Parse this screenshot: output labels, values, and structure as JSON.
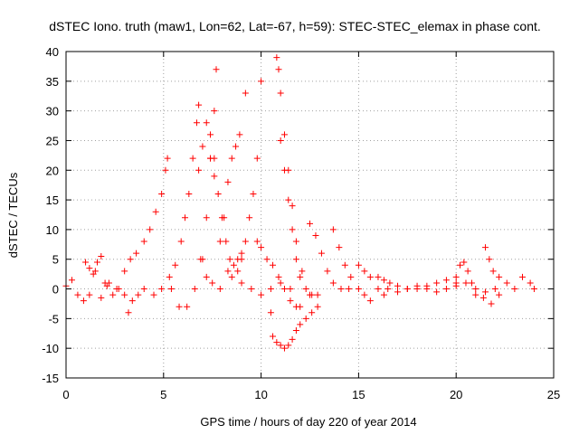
{
  "chart_data": {
    "type": "scatter",
    "title": "dSTEC Iono. truth (maw1, Lon=62, Lat=-67, h=59): STEC-STEC_elemax in phase cont.",
    "xlabel": "GPS time / hours of day 220 of year 2014",
    "ylabel": "dSTEC  / TECUs",
    "xlim": [
      0,
      25
    ],
    "ylim": [
      -15,
      40
    ],
    "xticks": [
      0,
      5,
      10,
      15,
      20,
      25
    ],
    "yticks": [
      -15,
      -10,
      -5,
      0,
      5,
      10,
      15,
      20,
      25,
      30,
      35,
      40
    ],
    "grid": true,
    "legend": "none",
    "marker": "plus",
    "color": "#ff0000",
    "series": [
      {
        "x": [
          0.0,
          0.3,
          0.6,
          0.9,
          1.2,
          1.5,
          1.8,
          2.1,
          2.4,
          2.7
        ],
        "y": [
          0.5,
          1.5,
          -1.0,
          -2.0,
          -1.0,
          3.0,
          -1.5,
          0.5,
          -1.0,
          0.0
        ]
      },
      {
        "x": [
          1.0,
          1.2,
          1.4,
          1.6,
          1.8,
          2.0
        ],
        "y": [
          4.5,
          3.5,
          2.5,
          4.5,
          5.5,
          1.0
        ]
      },
      {
        "x": [
          2.2,
          2.6,
          3.0,
          3.3,
          3.6,
          4.0,
          4.3,
          4.6,
          4.9,
          5.1,
          5.2
        ],
        "y": [
          1.0,
          0.0,
          3.0,
          5.0,
          6.0,
          8.0,
          10.0,
          13.0,
          16.0,
          20.0,
          22.0
        ]
      },
      {
        "x": [
          3.0,
          3.2,
          3.4,
          3.7,
          4.0
        ],
        "y": [
          -1.0,
          -4.0,
          -2.0,
          -1.0,
          0.0
        ]
      },
      {
        "x": [
          4.5,
          4.9,
          5.3,
          5.6,
          5.9,
          6.1,
          6.3,
          6.5,
          6.7,
          6.8
        ],
        "y": [
          -1.0,
          0.0,
          2.0,
          4.0,
          8.0,
          12.0,
          16.0,
          22.0,
          28.0,
          31.0
        ]
      },
      {
        "x": [
          5.4,
          5.8,
          6.2,
          6.6,
          7.0,
          7.2,
          7.4,
          7.6,
          7.7
        ],
        "y": [
          0.0,
          -3.0,
          -3.0,
          0.0,
          5.0,
          12.0,
          22.0,
          30.0,
          37.0
        ]
      },
      {
        "x": [
          6.9,
          7.2,
          7.5,
          7.9,
          8.3,
          8.6,
          8.8,
          9.0
        ],
        "y": [
          5.0,
          2.0,
          1.0,
          0.0,
          3.0,
          4.0,
          5.0,
          6.0
        ]
      },
      {
        "x": [
          7.4,
          7.6,
          7.8,
          8.0,
          8.2,
          8.4
        ],
        "y": [
          22.0,
          19.0,
          16.0,
          12.0,
          8.0,
          5.0
        ]
      },
      {
        "x": [
          6.8,
          7.0,
          7.2,
          7.4,
          7.6
        ],
        "y": [
          20.0,
          24.0,
          28.0,
          26.0,
          22.0
        ]
      },
      {
        "x": [
          7.9,
          8.1,
          8.3,
          8.5,
          8.7,
          8.9,
          9.2
        ],
        "y": [
          8.0,
          12.0,
          18.0,
          22.0,
          24.0,
          26.0,
          33.0
        ]
      },
      {
        "x": [
          8.8,
          9.0,
          9.2,
          9.4,
          9.6,
          9.8,
          10.0
        ],
        "y": [
          3.0,
          5.0,
          8.0,
          12.0,
          16.0,
          22.0,
          35.0
        ]
      },
      {
        "x": [
          9.8,
          10.0,
          10.3,
          10.6,
          10.9,
          11.2,
          11.5,
          11.8,
          12.0
        ],
        "y": [
          8.0,
          7.0,
          5.0,
          4.0,
          2.0,
          0.0,
          -2.0,
          -3.0,
          -3.0
        ]
      },
      {
        "x": [
          10.5,
          10.6,
          10.8,
          11.0,
          11.2,
          11.4,
          11.6,
          11.8,
          12.0,
          12.3,
          12.6,
          12.9
        ],
        "y": [
          -4.0,
          -8.0,
          -9.0,
          -9.5,
          -10.0,
          -9.5,
          -8.5,
          -7.0,
          -6.0,
          -5.0,
          -4.0,
          -3.0
        ]
      },
      {
        "x": [
          10.8,
          10.9,
          11.0,
          11.2,
          11.4,
          11.6,
          11.8,
          12.1,
          12.5
        ],
        "y": [
          39.0,
          37.0,
          33.0,
          26.0,
          20.0,
          14.0,
          8.0,
          3.0,
          -1.0
        ]
      },
      {
        "x": [
          11.0,
          11.2,
          11.4,
          11.6,
          11.8,
          12.0,
          12.3,
          12.6,
          12.9
        ],
        "y": [
          25.0,
          20.0,
          15.0,
          10.0,
          5.0,
          2.0,
          0.0,
          -1.0,
          -1.0
        ]
      },
      {
        "x": [
          12.5,
          12.8,
          13.1,
          13.4,
          13.7,
          14.1,
          14.5
        ],
        "y": [
          11.0,
          9.0,
          6.0,
          3.0,
          1.0,
          0.0,
          0.0
        ]
      },
      {
        "x": [
          13.7,
          14.0,
          14.3,
          14.6,
          15.0,
          15.3,
          15.6
        ],
        "y": [
          10.0,
          7.0,
          4.0,
          2.0,
          0.0,
          -1.0,
          -2.0
        ]
      },
      {
        "x": [
          15.0,
          15.3,
          15.6,
          16.0,
          16.3
        ],
        "y": [
          4.0,
          3.0,
          2.0,
          0.0,
          -1.0
        ]
      },
      {
        "x": [
          16.0,
          16.3,
          16.6,
          17.0,
          17.5,
          18.0,
          18.5,
          19.0,
          19.5,
          20.0
        ],
        "y": [
          2.0,
          1.5,
          1.0,
          0.5,
          0.0,
          0.0,
          0.5,
          1.0,
          1.5,
          1.0
        ]
      },
      {
        "x": [
          20.0,
          20.2,
          20.4,
          20.6,
          20.8,
          21.0,
          21.4,
          21.8,
          22.2
        ],
        "y": [
          2.0,
          4.0,
          4.5,
          3.0,
          1.0,
          -1.0,
          -1.5,
          -2.5,
          -1.0
        ]
      },
      {
        "x": [
          21.5,
          21.7,
          21.9,
          22.2,
          22.6,
          23.0,
          23.4,
          23.8,
          24.0
        ],
        "y": [
          7.0,
          5.0,
          3.0,
          2.0,
          1.0,
          0.0,
          2.0,
          1.0,
          0.0
        ]
      },
      {
        "x": [
          8.5,
          9.0,
          9.5,
          10.0,
          10.5,
          11.0,
          11.5
        ],
        "y": [
          2.0,
          1.0,
          0.0,
          -1.0,
          0.0,
          1.0,
          0.0
        ]
      },
      {
        "x": [
          16.5,
          17.0,
          17.5,
          18.0,
          18.5,
          19.0,
          19.5,
          20.0,
          20.5,
          21.0,
          21.5,
          22.0
        ],
        "y": [
          0.0,
          -0.5,
          0.0,
          0.5,
          0.0,
          -0.5,
          0.0,
          0.5,
          1.0,
          0.0,
          -0.5,
          0.0
        ]
      }
    ]
  }
}
